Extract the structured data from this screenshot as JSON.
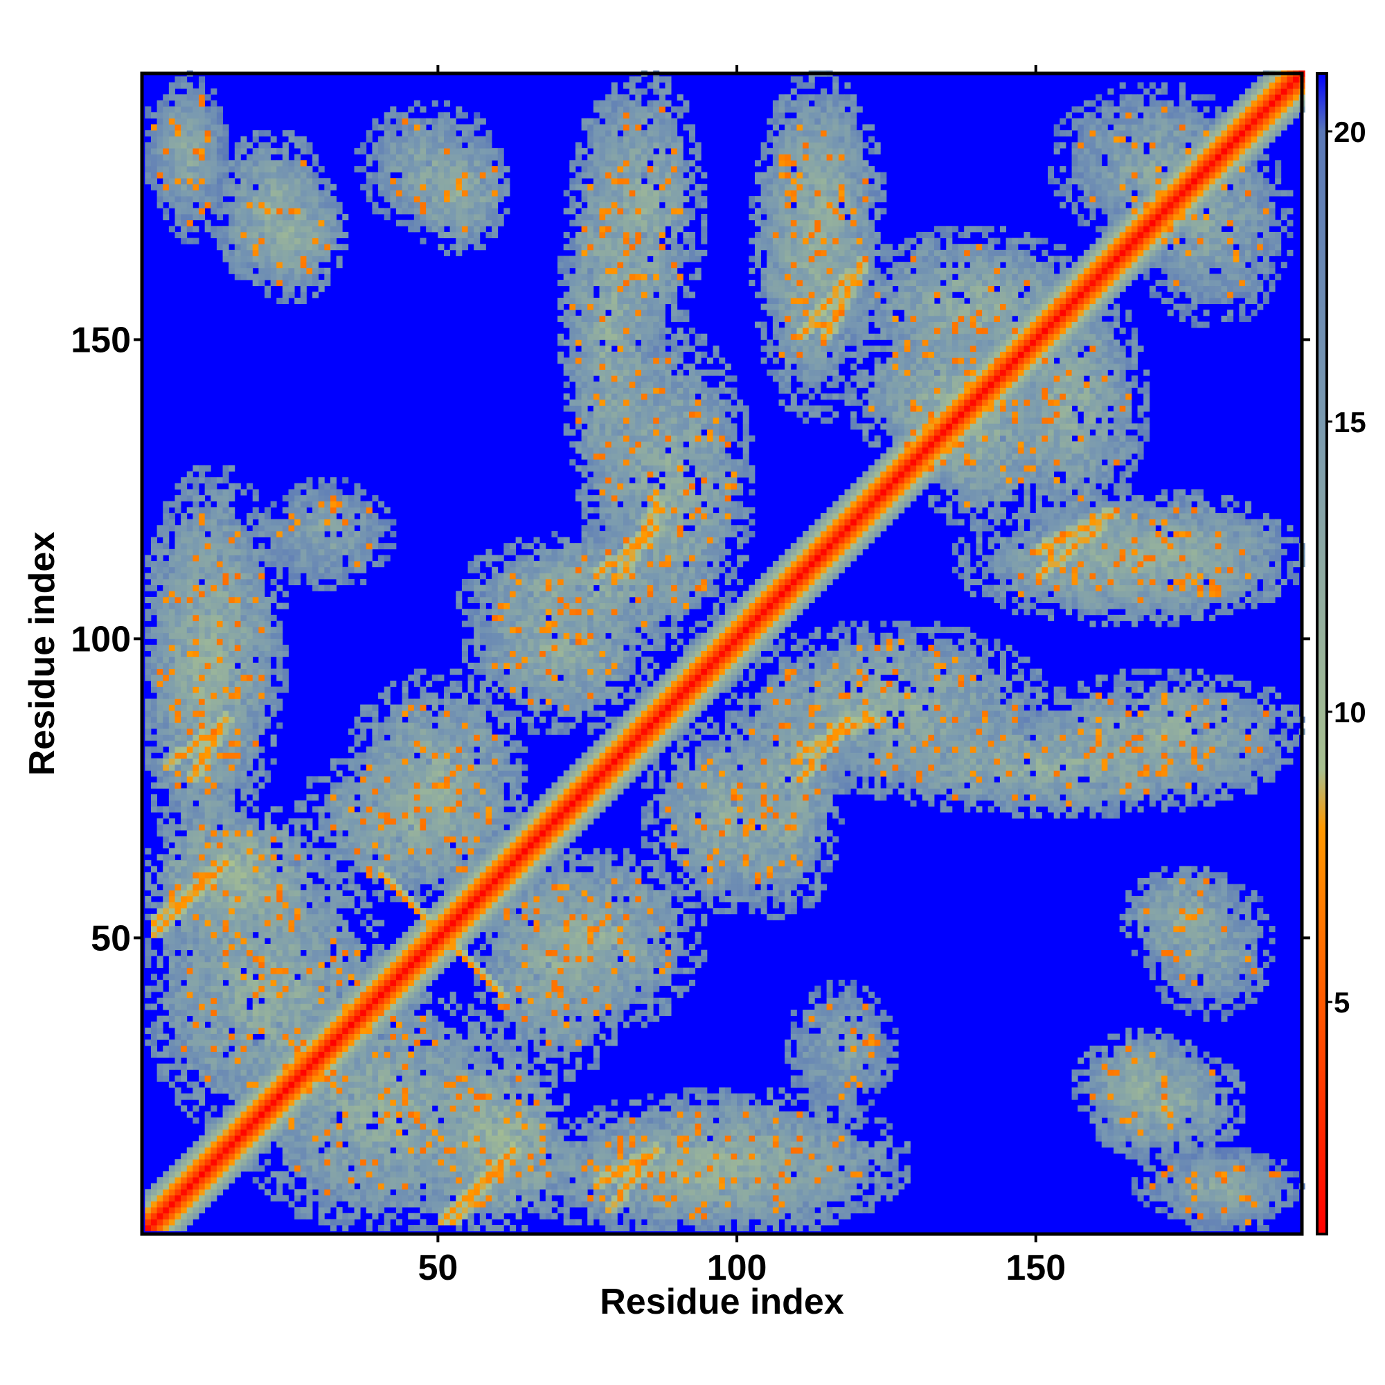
{
  "chart_data": {
    "type": "heatmap",
    "title": "",
    "xlabel": "Residue index",
    "ylabel": "Residue index",
    "n_residues": 194,
    "xlim": [
      1,
      194
    ],
    "ylim": [
      1,
      194
    ],
    "x_ticks": [
      50,
      100,
      150
    ],
    "y_ticks": [
      50,
      100,
      150
    ],
    "colorbar": {
      "ticks": [
        5,
        10,
        15,
        20
      ],
      "range": [
        1,
        21
      ],
      "stops": [
        {
          "value": 1,
          "color": "#ff0000"
        },
        {
          "value": 5,
          "color": "#ff5a00"
        },
        {
          "value": 8,
          "color": "#ff9900"
        },
        {
          "value": 9,
          "color": "#a8c090"
        },
        {
          "value": 15,
          "color": "#7a9ab0"
        },
        {
          "value": 20,
          "color": "#5a78b8"
        },
        {
          "value": 21,
          "color": "#0000ff"
        }
      ]
    },
    "background_value": 21,
    "diagonal_value": 1,
    "contact_regions": [
      {
        "x": [
          2,
          12
        ],
        "y": [
          174,
          190
        ],
        "level": 13
      },
      {
        "x": [
          14,
          30
        ],
        "y": [
          160,
          182
        ],
        "level": 12
      },
      {
        "x": [
          38,
          58
        ],
        "y": [
          170,
          187
        ],
        "level": 13
      },
      {
        "x": [
          72,
          85
        ],
        "y": [
          118,
          188
        ],
        "level": 12
      },
      {
        "x": [
          104,
          120
        ],
        "y": [
          138,
          192
        ],
        "level": 12
      },
      {
        "x": [
          2,
          18
        ],
        "y": [
          62,
          124
        ],
        "level": 12
      },
      {
        "x": [
          2,
          40
        ],
        "y": [
          18,
          62
        ],
        "level": 12
      },
      {
        "x": [
          22,
          40
        ],
        "y": [
          110,
          124
        ],
        "level": 13
      },
      {
        "x": [
          55,
          92
        ],
        "y": [
          100,
          115
        ],
        "level": 12
      },
      {
        "x": [
          36,
          62
        ],
        "y": [
          60,
          92
        ],
        "level": 12
      },
      {
        "x": [
          58,
          80
        ],
        "y": [
          28,
          62
        ],
        "level": 12
      },
      {
        "x": [
          48,
          70
        ],
        "y": [
          2,
          30
        ],
        "level": 11
      },
      {
        "x": [
          70,
          126
        ],
        "y": [
          2,
          22
        ],
        "level": 12
      },
      {
        "x": [
          100,
          150
        ],
        "y": [
          76,
          100
        ],
        "level": 12
      },
      {
        "x": [
          150,
          192
        ],
        "y": [
          76,
          92
        ],
        "level": 12
      },
      {
        "x": [
          148,
          192
        ],
        "y": [
          105,
          122
        ],
        "level": 12
      },
      {
        "x": [
          144,
          166
        ],
        "y": [
          120,
          158
        ],
        "level": 12
      },
      {
        "x": [
          154,
          184
        ],
        "y": [
          168,
          190
        ],
        "level": 13
      },
      {
        "x": [
          166,
          182
        ],
        "y": [
          46,
          60
        ],
        "level": 12
      },
      {
        "x": [
          158,
          176
        ],
        "y": [
          18,
          32
        ],
        "level": 12
      },
      {
        "x": [
          168,
          192
        ],
        "y": [
          4,
          12
        ],
        "level": 13
      },
      {
        "x": [
          120,
          148
        ],
        "y": [
          130,
          150
        ],
        "level": 12
      },
      {
        "x": [
          86,
          110
        ],
        "y": [
          56,
          84
        ],
        "level": 12
      }
    ],
    "strong_contacts": [
      {
        "from": [
          40,
          60
        ],
        "to": [
          60,
          40
        ],
        "value": 7
      },
      {
        "from": [
          50,
          2
        ],
        "to": [
          62,
          14
        ],
        "value": 7
      },
      {
        "from": [
          2,
          52
        ],
        "to": [
          14,
          62
        ],
        "value": 7
      },
      {
        "from": [
          76,
          8
        ],
        "to": [
          86,
          14
        ],
        "value": 7
      },
      {
        "from": [
          110,
          80
        ],
        "to": [
          122,
          86
        ],
        "value": 7
      },
      {
        "from": [
          150,
          114
        ],
        "to": [
          162,
          120
        ],
        "value": 7
      },
      {
        "from": [
          76,
          110
        ],
        "to": [
          86,
          118
        ],
        "value": 7
      },
      {
        "from": [
          110,
          150
        ],
        "to": [
          118,
          160
        ],
        "value": 7
      },
      {
        "from": [
          4,
          78
        ],
        "to": [
          12,
          84
        ],
        "value": 7
      }
    ]
  }
}
